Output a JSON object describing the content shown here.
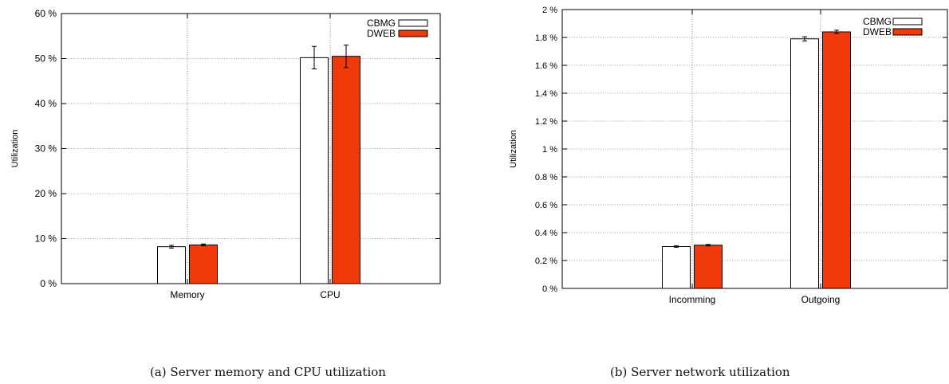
{
  "captions": {
    "a": "(a) Server memory and CPU utilization",
    "b": "(b) Server network utilization"
  },
  "chart_data": [
    {
      "type": "bar",
      "title": "",
      "xlabel": "",
      "ylabel": "Utilization",
      "categories": [
        "Memory",
        "CPU"
      ],
      "ylim": [
        0,
        60
      ],
      "yticks": [
        0,
        10,
        20,
        30,
        40,
        50,
        60
      ],
      "ytick_labels": [
        "0 %",
        "10 %",
        "20 %",
        "30 %",
        "40 %",
        "50 %",
        "60 %"
      ],
      "grid": true,
      "legend_position": "top-right",
      "series": [
        {
          "name": "CBMG",
          "color": "#ffffff",
          "values": [
            8.2,
            50.2
          ],
          "errors": [
            0.3,
            2.5
          ]
        },
        {
          "name": "DWEB",
          "color": "#f03a0a",
          "values": [
            8.6,
            50.5
          ],
          "errors": [
            0.2,
            2.5
          ]
        }
      ]
    },
    {
      "type": "bar",
      "title": "",
      "xlabel": "",
      "ylabel": "Utilization",
      "categories": [
        "Incomming",
        "Outgoing"
      ],
      "ylim": [
        0,
        2
      ],
      "yticks": [
        0,
        0.2,
        0.4,
        0.6,
        0.8,
        1.0,
        1.2,
        1.4,
        1.6,
        1.8,
        2.0
      ],
      "ytick_labels": [
        "0 %",
        "0.2 %",
        "0.4 %",
        "0.6 %",
        "0.8 %",
        "1 %",
        "1.2 %",
        "1.4 %",
        "1.6 %",
        "1.8 %",
        "2 %"
      ],
      "grid": true,
      "legend_position": "top-right",
      "series": [
        {
          "name": "CBMG",
          "color": "#ffffff",
          "values": [
            0.3,
            1.79
          ],
          "errors": [
            0.005,
            0.015
          ]
        },
        {
          "name": "DWEB",
          "color": "#f03a0a",
          "values": [
            0.31,
            1.84
          ],
          "errors": [
            0.005,
            0.012
          ]
        }
      ]
    }
  ]
}
